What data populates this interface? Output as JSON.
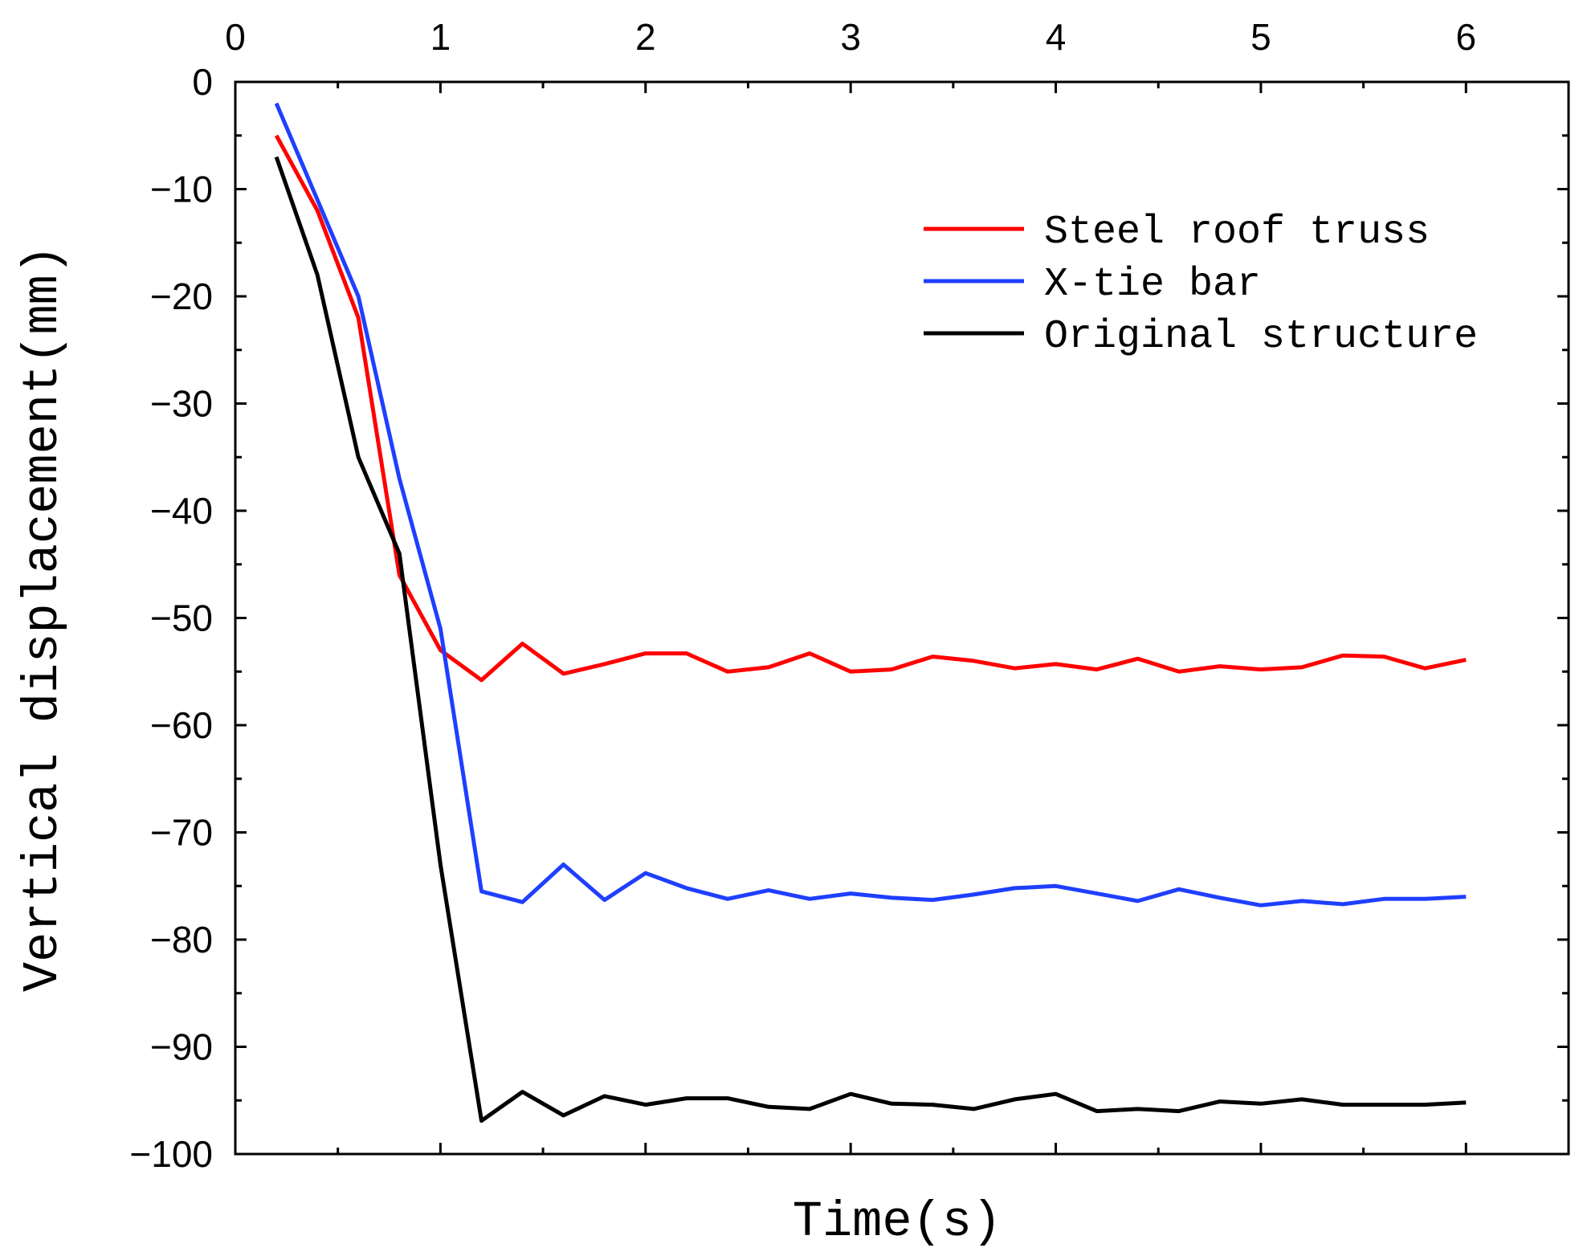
{
  "chart_data": {
    "type": "line",
    "title": "",
    "xlabel": "Time(s)",
    "ylabel": "Vertical displacement(mm)",
    "xlim": [
      0,
      6.5
    ],
    "ylim": [
      -100,
      0
    ],
    "xticks": [
      0,
      1,
      2,
      3,
      4,
      5,
      6
    ],
    "yticks": [
      0,
      -10,
      -20,
      -30,
      -40,
      -50,
      -60,
      -70,
      -80,
      -90,
      -100
    ],
    "xtick_labels": [
      "0",
      "1",
      "2",
      "3",
      "4",
      "5",
      "6"
    ],
    "ytick_labels": [
      "0",
      "−10",
      "−20",
      "−30",
      "−40",
      "−50",
      "−60",
      "−70",
      "−80",
      "−90",
      "−100"
    ],
    "x": [
      0.2,
      0.4,
      0.6,
      0.8,
      1.0,
      1.2,
      1.4,
      1.6,
      1.8,
      2.0,
      2.2,
      2.4,
      2.6,
      2.8,
      3.0,
      3.2,
      3.4,
      3.6,
      3.8,
      4.0,
      4.2,
      4.4,
      4.6,
      4.8,
      5.0,
      5.2,
      5.4,
      5.6,
      5.8,
      6.0
    ],
    "legend_position": "top-right",
    "grid": false,
    "series": [
      {
        "name": "Steel roof truss",
        "color": "#ff0000",
        "values": [
          -5,
          -12,
          -22,
          -46,
          -53,
          -55.8,
          -52.4,
          -55.2,
          -54.3,
          -53.3,
          -53.3,
          -55.0,
          -54.6,
          -53.3,
          -55.0,
          -54.8,
          -53.6,
          -54.0,
          -54.7,
          -54.3,
          -54.8,
          -53.8,
          -55.0,
          -54.5,
          -54.8,
          -54.6,
          -53.5,
          -53.6,
          -54.7,
          -53.9
        ]
      },
      {
        "name": "X-tie bar",
        "color": "#1f3fff",
        "values": [
          -2,
          -11,
          -20,
          -37,
          -51,
          -75.5,
          -76.5,
          -73,
          -76.3,
          -73.8,
          -75.2,
          -76.2,
          -75.4,
          -76.2,
          -75.7,
          -76.1,
          -76.3,
          -75.8,
          -75.2,
          -75.0,
          -75.7,
          -76.4,
          -75.3,
          -76.1,
          -76.8,
          -76.4,
          -76.7,
          -76.2,
          -76.2,
          -76.0
        ]
      },
      {
        "name": "Original structure",
        "color": "#000000",
        "values": [
          -7,
          -18,
          -35,
          -44,
          -73,
          -96.9,
          -94.2,
          -96.4,
          -94.6,
          -95.4,
          -94.8,
          -94.8,
          -95.6,
          -95.8,
          -94.4,
          -95.3,
          -95.4,
          -95.8,
          -94.9,
          -94.4,
          -96.0,
          -95.8,
          -96.0,
          -95.1,
          -95.3,
          -94.9,
          -95.4,
          -95.4,
          -95.4,
          -95.2
        ]
      }
    ]
  }
}
